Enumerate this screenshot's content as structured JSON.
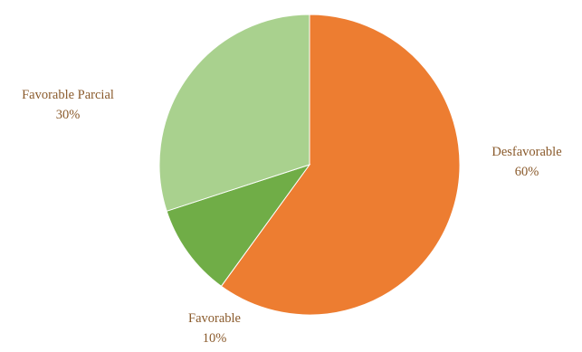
{
  "chart_data": {
    "type": "pie",
    "slices": [
      {
        "name": "Desfavorable",
        "value": 60,
        "value_label": "60%",
        "color": "#ed7d31"
      },
      {
        "name": "Favorable",
        "value": 10,
        "value_label": "10%",
        "color": "#70ad47"
      },
      {
        "name": "Favorable Parcial",
        "value": 30,
        "value_label": "30%",
        "color": "#a9d18e"
      }
    ],
    "start": "12 o'clock",
    "direction": "clockwise",
    "legend": "none",
    "label_color": "#8a5a2b"
  }
}
